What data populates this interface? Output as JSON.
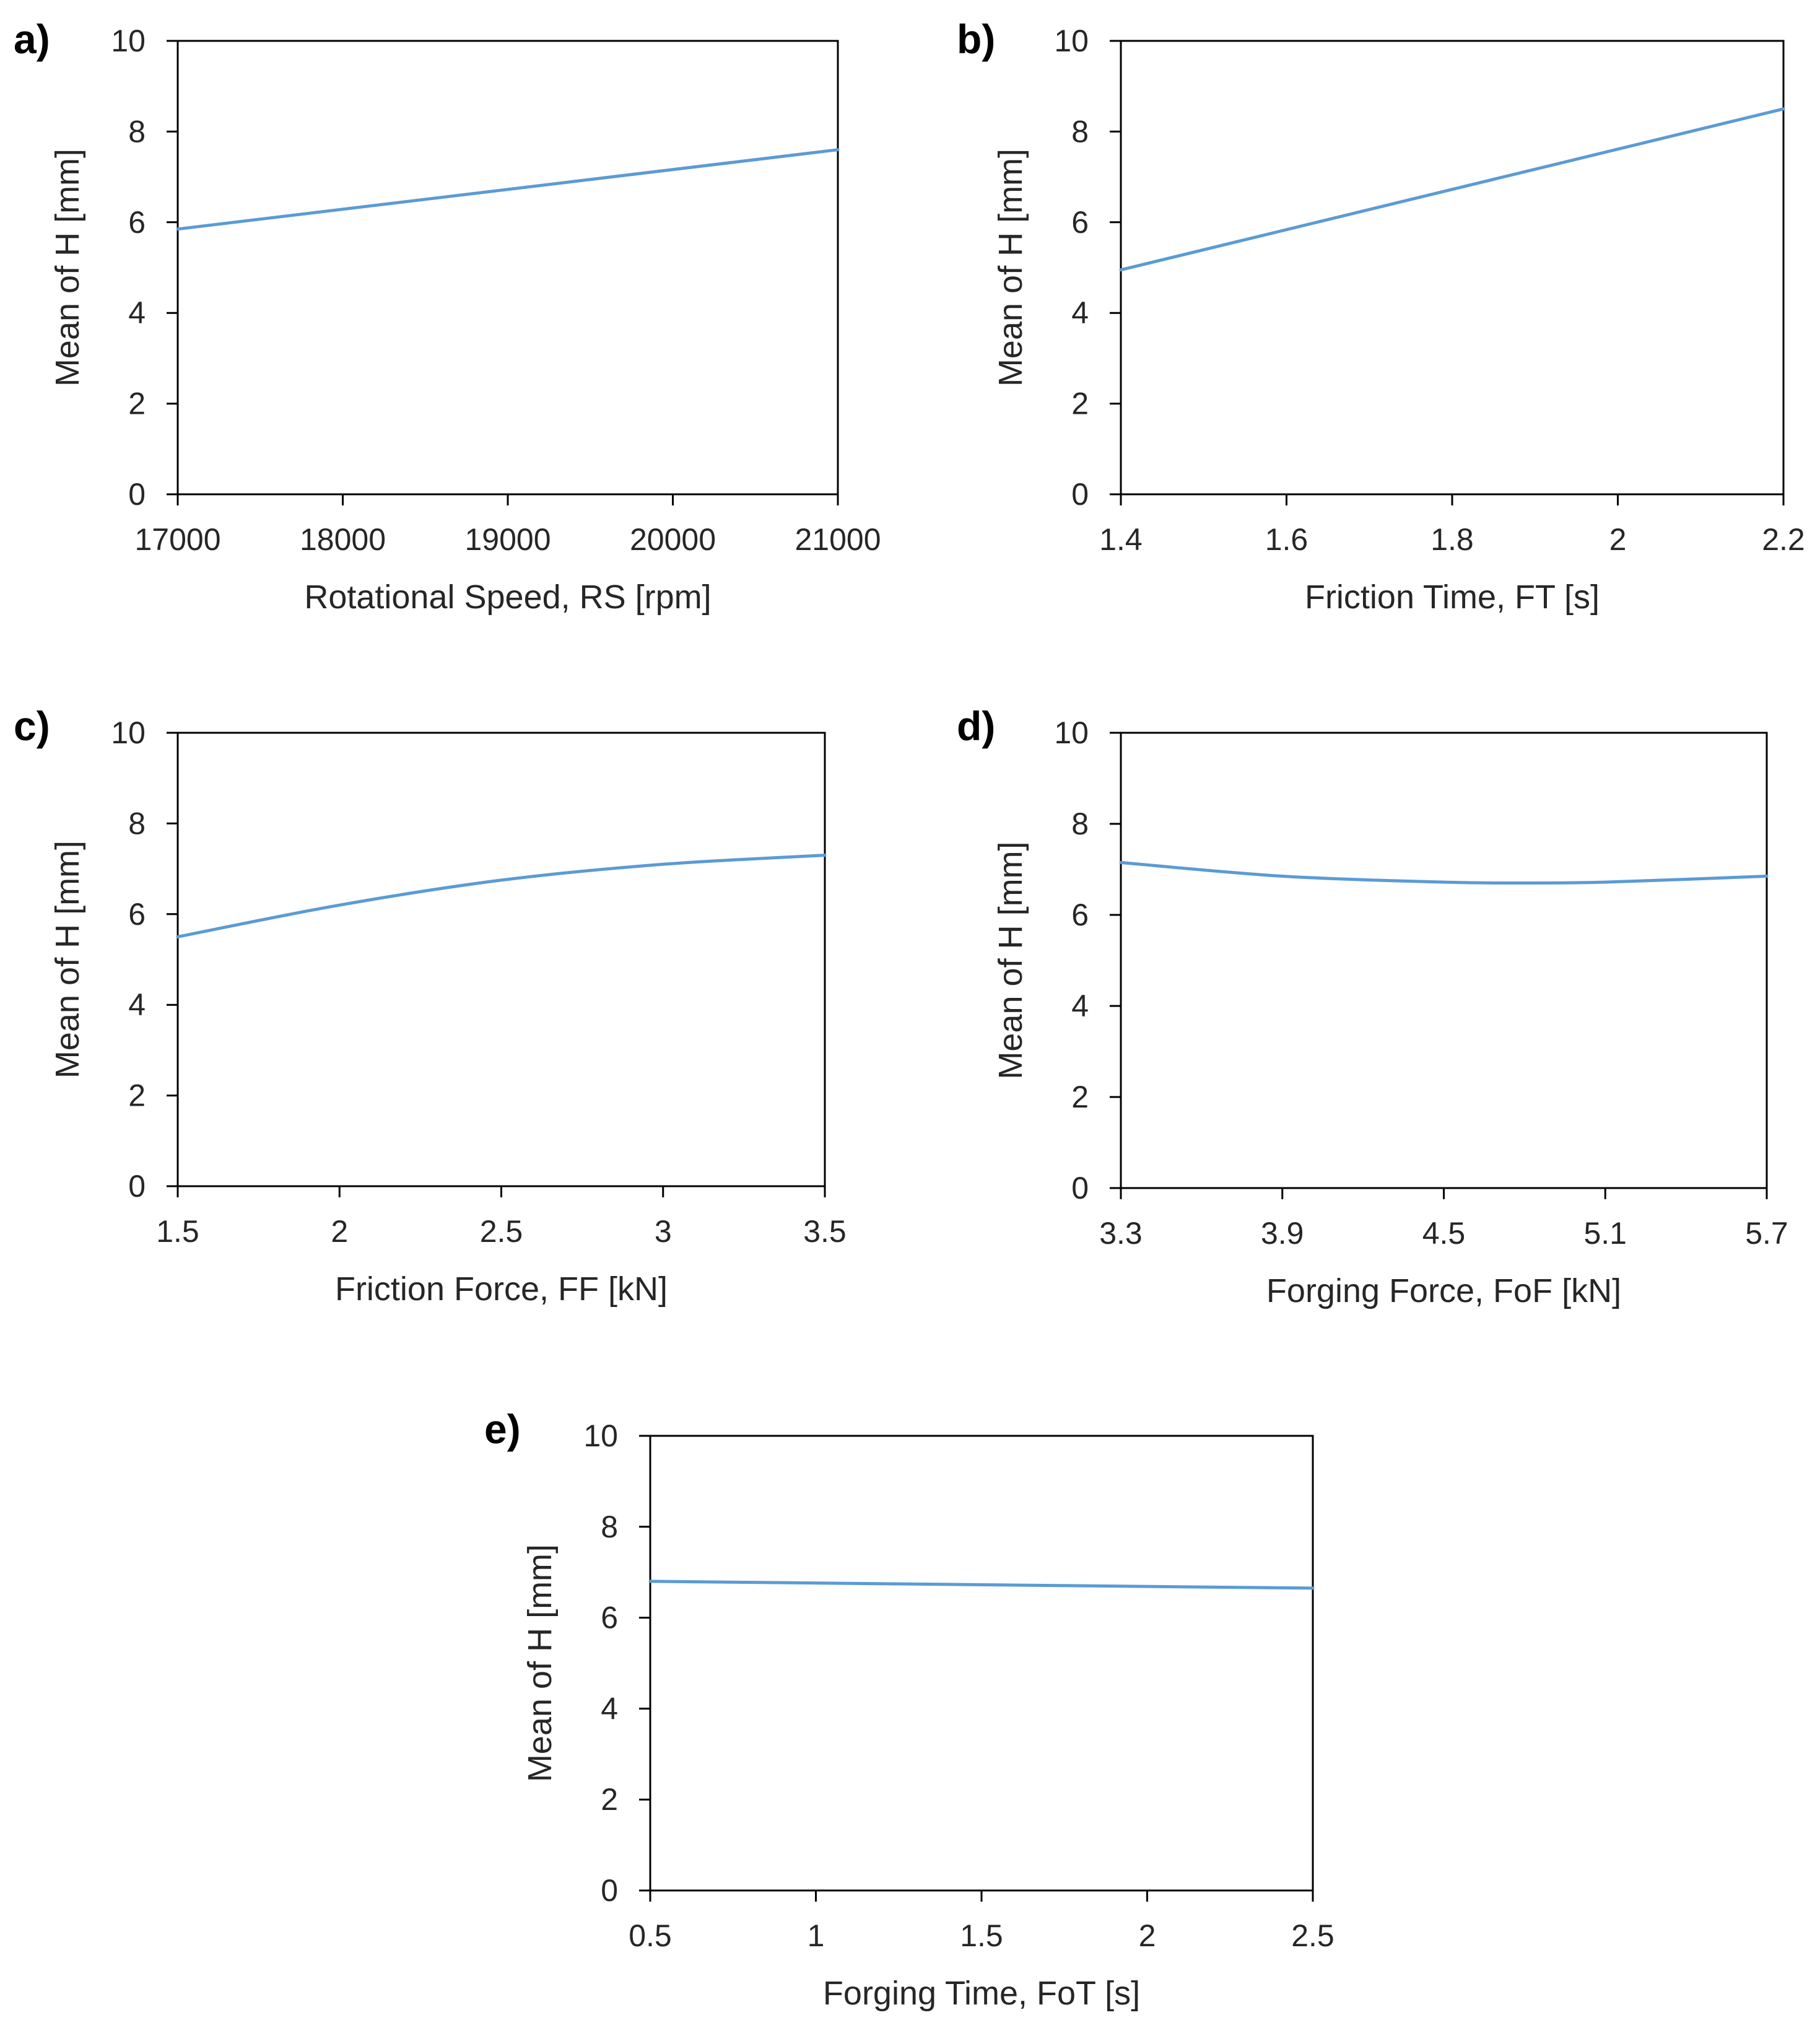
{
  "chart_data": [
    {
      "type": "line",
      "panel": "a)",
      "xlabel": "Rotational Speed, RS [rpm]",
      "ylabel": "Mean of H [mm]",
      "xlim": [
        17000,
        21000
      ],
      "ylim": [
        0,
        10
      ],
      "xticks": [
        "17000",
        "18000",
        "19000",
        "20000",
        "21000"
      ],
      "yticks": [
        "0",
        "2",
        "4",
        "6",
        "8",
        "10"
      ],
      "series": [
        {
          "name": "Mean of H",
          "x": [
            17000,
            21000
          ],
          "y": [
            5.85,
            7.6
          ]
        }
      ]
    },
    {
      "type": "line",
      "panel": "b)",
      "xlabel": "Friction Time, FT [s]",
      "ylabel": "Mean of H [mm]",
      "xlim": [
        1.4,
        2.2
      ],
      "ylim": [
        0,
        10
      ],
      "xticks": [
        "1.4",
        "1.6",
        "1.8",
        "2",
        "2.2"
      ],
      "yticks": [
        "0",
        "2",
        "4",
        "6",
        "8",
        "10"
      ],
      "series": [
        {
          "name": "Mean of H",
          "x": [
            1.4,
            2.2
          ],
          "y": [
            4.95,
            8.5
          ]
        }
      ]
    },
    {
      "type": "line",
      "panel": "c)",
      "xlabel": "Friction Force, FF [kN]",
      "ylabel": "Mean of H [mm]",
      "xlim": [
        1.5,
        3.5
      ],
      "ylim": [
        0,
        10
      ],
      "xticks": [
        "1.5",
        "2",
        "2.5",
        "3",
        "3.5"
      ],
      "yticks": [
        "0",
        "2",
        "4",
        "6",
        "8",
        "10"
      ],
      "series": [
        {
          "name": "Mean of H",
          "x": [
            1.5,
            2.0,
            2.5,
            3.0,
            3.5
          ],
          "y": [
            5.5,
            6.2,
            6.75,
            7.1,
            7.3
          ]
        }
      ]
    },
    {
      "type": "line",
      "panel": "d)",
      "xlabel": "Forging Force, FoF [kN]",
      "ylabel": "Mean of H [mm]",
      "xlim": [
        3.3,
        5.7
      ],
      "ylim": [
        0,
        10
      ],
      "xticks": [
        "3.3",
        "3.9",
        "4.5",
        "5.1",
        "5.7"
      ],
      "yticks": [
        "0",
        "2",
        "4",
        "6",
        "8",
        "10"
      ],
      "series": [
        {
          "name": "Mean of H",
          "x": [
            3.3,
            3.9,
            4.5,
            4.8,
            5.1,
            5.7
          ],
          "y": [
            7.15,
            6.85,
            6.72,
            6.7,
            6.72,
            6.85
          ]
        }
      ]
    },
    {
      "type": "line",
      "panel": "e)",
      "xlabel": "Forging Time, FoT [s]",
      "ylabel": "Mean of H [mm]",
      "xlim": [
        0.5,
        2.5
      ],
      "ylim": [
        0,
        10
      ],
      "xticks": [
        "0.5",
        "1",
        "1.5",
        "2",
        "2.5"
      ],
      "yticks": [
        "0",
        "2",
        "4",
        "6",
        "8",
        "10"
      ],
      "series": [
        {
          "name": "Mean of H",
          "x": [
            0.5,
            2.5
          ],
          "y": [
            6.8,
            6.65
          ]
        }
      ]
    }
  ],
  "colors": {
    "line": "#5b9bd5",
    "axis": "#000000",
    "text": "#262626"
  }
}
